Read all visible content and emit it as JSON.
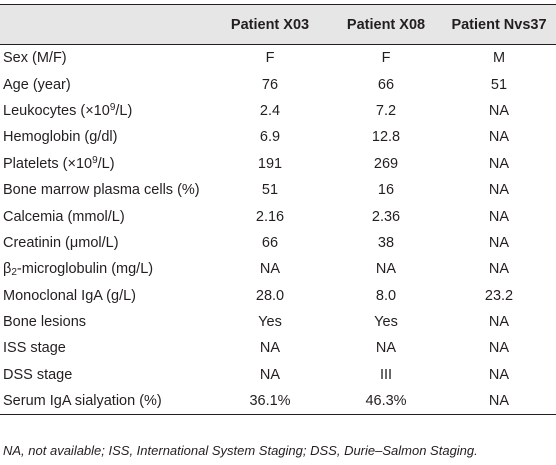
{
  "table": {
    "headers": [
      "",
      "Patient X03",
      "Patient X08",
      "Patient Nvs37"
    ],
    "rows": [
      {
        "label": "Sex (M/F)",
        "values": [
          "F",
          "F",
          "M"
        ]
      },
      {
        "label": "Age (year)",
        "values": [
          "76",
          "66",
          "51"
        ]
      },
      {
        "label_parts": [
          "Leukocytes (×10",
          "9",
          "/L)"
        ],
        "values": [
          "2.4",
          "7.2",
          "NA"
        ]
      },
      {
        "label": "Hemoglobin (g/dl)",
        "values": [
          "6.9",
          "12.8",
          "NA"
        ]
      },
      {
        "label_parts": [
          "Platelets (×10",
          "9",
          "/L)"
        ],
        "values": [
          "191",
          "269",
          "NA"
        ]
      },
      {
        "label": "Bone marrow plasma cells (%)",
        "values": [
          "51",
          "16",
          "NA"
        ]
      },
      {
        "label": "Calcemia (mmol/L)",
        "values": [
          "2.16",
          "2.36",
          "NA"
        ]
      },
      {
        "label": "Creatinin (μmol/L)",
        "values": [
          "66",
          "38",
          "NA"
        ]
      },
      {
        "label_parts": [
          "β",
          "2",
          "-microglobulin (mg/L)"
        ],
        "values": [
          "NA",
          "NA",
          "NA"
        ]
      },
      {
        "label": "Monoclonal IgA (g/L)",
        "values": [
          "28.0",
          "8.0",
          "23.2"
        ]
      },
      {
        "label": "Bone lesions",
        "values": [
          "Yes",
          "Yes",
          "NA"
        ]
      },
      {
        "label": "ISS stage",
        "values": [
          "NA",
          "NA",
          "NA"
        ]
      },
      {
        "label": "DSS stage",
        "values": [
          "NA",
          "III",
          "NA"
        ]
      },
      {
        "label": "Serum IgA sialyation (%)",
        "values": [
          "36.1%",
          "46.3%",
          "NA"
        ]
      }
    ]
  },
  "footnote": "NA, not available; ISS, International System Staging; DSS, Durie–Salmon Staging."
}
